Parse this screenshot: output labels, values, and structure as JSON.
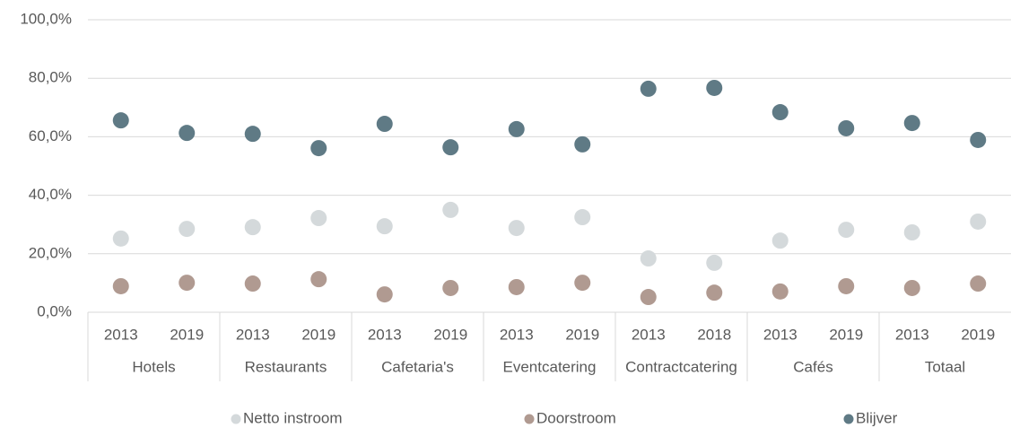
{
  "chart_data": {
    "type": "dot",
    "category_groups": [
      {
        "name": "Hotels",
        "categories": [
          "2013",
          "2019"
        ]
      },
      {
        "name": "Restaurants",
        "categories": [
          "2013",
          "2019"
        ]
      },
      {
        "name": "Cafetaria's",
        "categories": [
          "2013",
          "2019"
        ]
      },
      {
        "name": "Eventcatering",
        "categories": [
          "2013",
          "2019"
        ]
      },
      {
        "name": "Contractcatering",
        "categories": [
          "2013",
          "2018"
        ]
      },
      {
        "name": "Cafés",
        "categories": [
          "2013",
          "2019"
        ]
      },
      {
        "name": "Totaal",
        "categories": [
          "2013",
          "2019"
        ]
      }
    ],
    "series": [
      {
        "name": "Netto instroom",
        "color": "#d4d9db",
        "values": [
          25.2,
          28.5,
          29.1,
          32.2,
          29.4,
          35.0,
          28.8,
          32.5,
          18.4,
          16.9,
          24.5,
          28.2,
          27.3,
          31.0
        ]
      },
      {
        "name": "Doorstroom",
        "color": "#b09a91",
        "values": [
          8.9,
          10.1,
          9.8,
          11.3,
          6.1,
          8.3,
          8.6,
          10.1,
          5.2,
          6.7,
          7.1,
          8.9,
          8.3,
          9.8
        ]
      },
      {
        "name": "Blijver",
        "color": "#5f7a85",
        "values": [
          65.6,
          61.3,
          61.0,
          56.1,
          64.4,
          56.4,
          62.6,
          57.4,
          76.4,
          76.7,
          68.4,
          62.9,
          64.7,
          58.9
        ]
      }
    ],
    "ylim": [
      0,
      100
    ],
    "yticks": [
      {
        "value": 0,
        "label": "0,0%"
      },
      {
        "value": 20,
        "label": "20,0%"
      },
      {
        "value": 40,
        "label": "40,0%"
      },
      {
        "value": 60,
        "label": "60,0%"
      },
      {
        "value": 80,
        "label": "80,0%"
      },
      {
        "value": 100,
        "label": "100,0%"
      }
    ],
    "grid": true,
    "legend": "bottom"
  }
}
